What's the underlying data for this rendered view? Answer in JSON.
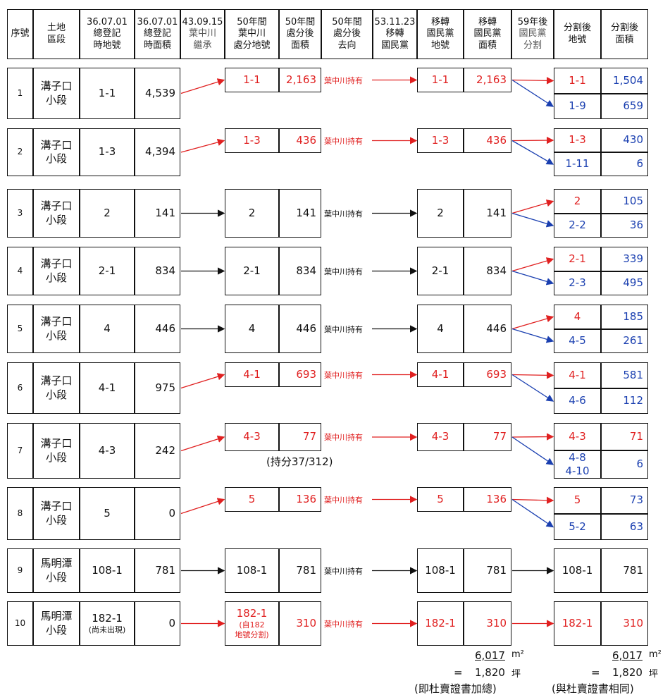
{
  "colors": {
    "red": "#e02020",
    "blue": "#1a3fb0",
    "black": "#111111"
  },
  "headers": {
    "seq": "序號",
    "land": "土地\n區段",
    "reg_no": "36.07.01\n總登記\n時地號",
    "reg_area": "36.07.01\n總登記\n時面積",
    "inherit": "43.09.15\n葉中川\n繼承",
    "disp_no": "50年間\n葉中川\n處分地號",
    "disp_area": "50年間\n處分後\n面積",
    "disp_dest": "50年間\n處分後\n去向",
    "kmt_date": "53.11.23\n移轉\n國民黨",
    "kmt_no": "移轉\n國民黨\n地號",
    "kmt_area": "移轉\n國民黨\n面積",
    "split": "59年後\n國民黨\n分割",
    "after_no": "分割後\n地號",
    "after_area": "分割後\n面積"
  },
  "rows": [
    {
      "seq": "1",
      "land": "溝子口\n小段",
      "reg_no": "1-1",
      "reg_area": "4,539",
      "disp_no": "1-1",
      "disp_area": "2,163",
      "dest": "葉中川持有",
      "kmt_no": "1-1",
      "kmt_area": "2,163",
      "splits": [
        {
          "no": "1-1",
          "area": "1,504"
        },
        {
          "no": "1-9",
          "area": "659"
        }
      ]
    },
    {
      "seq": "2",
      "land": "溝子口\n小段",
      "reg_no": "1-3",
      "reg_area": "4,394",
      "disp_no": "1-3",
      "disp_area": "436",
      "dest": "葉中川持有",
      "kmt_no": "1-3",
      "kmt_area": "436",
      "splits": [
        {
          "no": "1-3",
          "area": "430"
        },
        {
          "no": "1-11",
          "area": "6"
        }
      ]
    },
    {
      "seq": "3",
      "land": "溝子口\n小段",
      "reg_no": "2",
      "reg_area": "141",
      "disp_no": "2",
      "disp_area": "141",
      "dest": "葉中川持有",
      "kmt_no": "2",
      "kmt_area": "141",
      "splits": [
        {
          "no": "2",
          "area": "105"
        },
        {
          "no": "2-2",
          "area": "36"
        }
      ]
    },
    {
      "seq": "4",
      "land": "溝子口\n小段",
      "reg_no": "2-1",
      "reg_area": "834",
      "disp_no": "2-1",
      "disp_area": "834",
      "dest": "葉中川持有",
      "kmt_no": "2-1",
      "kmt_area": "834",
      "splits": [
        {
          "no": "2-1",
          "area": "339"
        },
        {
          "no": "2-3",
          "area": "495"
        }
      ]
    },
    {
      "seq": "5",
      "land": "溝子口\n小段",
      "reg_no": "4",
      "reg_area": "446",
      "disp_no": "4",
      "disp_area": "446",
      "dest": "葉中川持有",
      "kmt_no": "4",
      "kmt_area": "446",
      "splits": [
        {
          "no": "4",
          "area": "185"
        },
        {
          "no": "4-5",
          "area": "261"
        }
      ]
    },
    {
      "seq": "6",
      "land": "溝子口\n小段",
      "reg_no": "4-1",
      "reg_area": "975",
      "disp_no": "4-1",
      "disp_area": "693",
      "dest": "葉中川持有",
      "kmt_no": "4-1",
      "kmt_area": "693",
      "splits": [
        {
          "no": "4-1",
          "area": "581"
        },
        {
          "no": "4-6",
          "area": "112"
        }
      ]
    },
    {
      "seq": "7",
      "land": "溝子口\n小段",
      "reg_no": "4-3",
      "reg_area": "242",
      "disp_no": "4-3",
      "disp_area": "77",
      "dest": "葉中川持有",
      "note": "(持分37/312)",
      "kmt_no": "4-3",
      "kmt_area": "77",
      "splits": [
        {
          "no": "4-3",
          "area": "71"
        },
        {
          "no": "4-8\n4-10",
          "area": "6"
        }
      ]
    },
    {
      "seq": "8",
      "land": "溝子口\n小段",
      "reg_no": "5",
      "reg_area": "0",
      "disp_no": "5",
      "disp_area": "136",
      "dest": "葉中川持有",
      "kmt_no": "5",
      "kmt_area": "136",
      "splits": [
        {
          "no": "5",
          "area": "73"
        },
        {
          "no": "5-2",
          "area": "63"
        }
      ]
    },
    {
      "seq": "9",
      "land": "馬明潭\n小段",
      "reg_no": "108-1",
      "reg_area": "781",
      "disp_no": "108-1",
      "disp_area": "781",
      "dest": "葉中川持有",
      "kmt_no": "108-1",
      "kmt_area": "781",
      "splits": [
        {
          "no": "108-1",
          "area": "781"
        }
      ]
    },
    {
      "seq": "10",
      "land": "馬明潭\n小段",
      "reg_no": "182-1",
      "reg_no_note": "(尚未出現)",
      "reg_area": "0",
      "disp_no": "182-1",
      "disp_no_note": "(自182\n地號分割)",
      "disp_area": "310",
      "dest": "葉中川持有",
      "kmt_no": "182-1",
      "kmt_area": "310",
      "splits": [
        {
          "no": "182-1",
          "area": "310"
        }
      ]
    }
  ],
  "totals": {
    "kmt": {
      "value": "6,017",
      "unit": "m²",
      "eq": "=",
      "ping": "1,820",
      "ping_unit": "坪",
      "note": "(即杜賣證書加總)"
    },
    "after": {
      "value": "6,017",
      "unit": "m²",
      "eq": "=",
      "ping": "1,820",
      "ping_unit": "坪",
      "note": "(與杜賣證書相同)"
    }
  }
}
